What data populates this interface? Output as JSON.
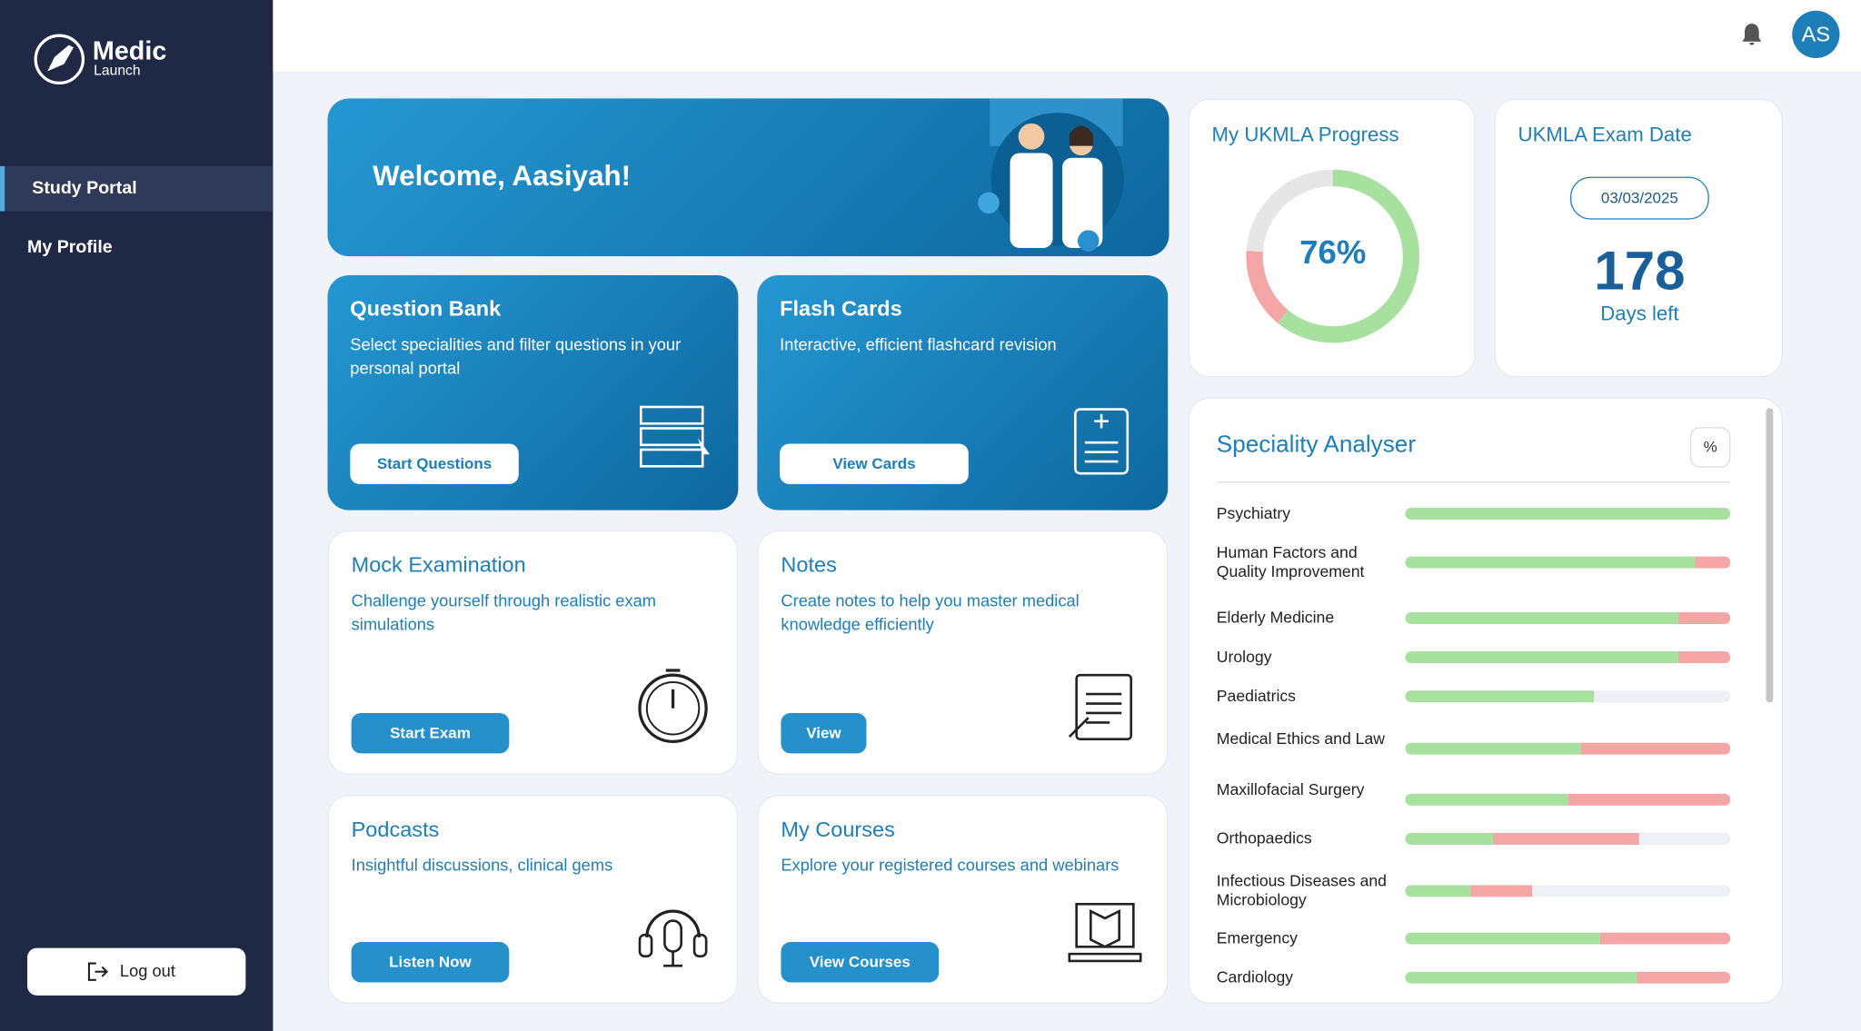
{
  "sidebar": {
    "logo": {
      "name": "Medic",
      "sub": "Launch"
    },
    "nav": [
      "Study Portal",
      "My Profile"
    ],
    "logout": "Log out"
  },
  "header": {
    "avatar": "AS"
  },
  "welcome": "Welcome, Aasiyah!",
  "cards": [
    {
      "title": "Question Bank",
      "text": "Select specialities and filter questions in your personal portal",
      "button": "Start Questions"
    },
    {
      "title": "Flash Cards",
      "text": "Interactive, efficient flashcard revision",
      "button": "View Cards"
    },
    {
      "title": "Mock Examination",
      "text": "Challenge yourself through realistic exam simulations",
      "button": "Start Exam"
    },
    {
      "title": "Notes",
      "text": "Create notes to help you master medical knowledge efficiently",
      "button": "View"
    },
    {
      "title": "Podcasts",
      "text": "Insightful discussions, clinical gems",
      "button": "Listen Now"
    },
    {
      "title": "My Courses",
      "text": "Explore your registered courses and webinars",
      "button": "View Courses"
    }
  ],
  "progress": {
    "title": "My UKMLA Progress",
    "label": "76%",
    "correct": 61,
    "incorrect": 15
  },
  "exam": {
    "title": "UKMLA Exam Date",
    "date": "03/03/2025",
    "days": "178",
    "days_label": "Days left"
  },
  "speciality_analyser": {
    "title": "Speciality Analyser",
    "toggle": "%",
    "items": [
      {
        "name": "Psychiatry",
        "correct": 100,
        "incorrect": 0
      },
      {
        "name": "Human Factors and Quality Improvement",
        "correct": 89,
        "incorrect": 11
      },
      {
        "name": "Elderly Medicine",
        "correct": 84,
        "incorrect": 16
      },
      {
        "name": "Urology",
        "correct": 84,
        "incorrect": 16
      },
      {
        "name": "Paediatrics",
        "correct": 58,
        "incorrect": 0
      },
      {
        "name": "Medical Ethics and Law",
        "correct": 54,
        "incorrect": 46
      },
      {
        "name": "Maxillofacial Surgery",
        "correct": 50,
        "incorrect": 50
      },
      {
        "name": "Orthopaedics",
        "correct": 27,
        "incorrect": 45
      },
      {
        "name": "Infectious Diseases and Microbiology",
        "correct": 20,
        "incorrect": 19
      },
      {
        "name": "Emergency",
        "correct": 60,
        "incorrect": 40
      },
      {
        "name": "Cardiology",
        "correct": 71,
        "incorrect": 29
      }
    ]
  }
}
